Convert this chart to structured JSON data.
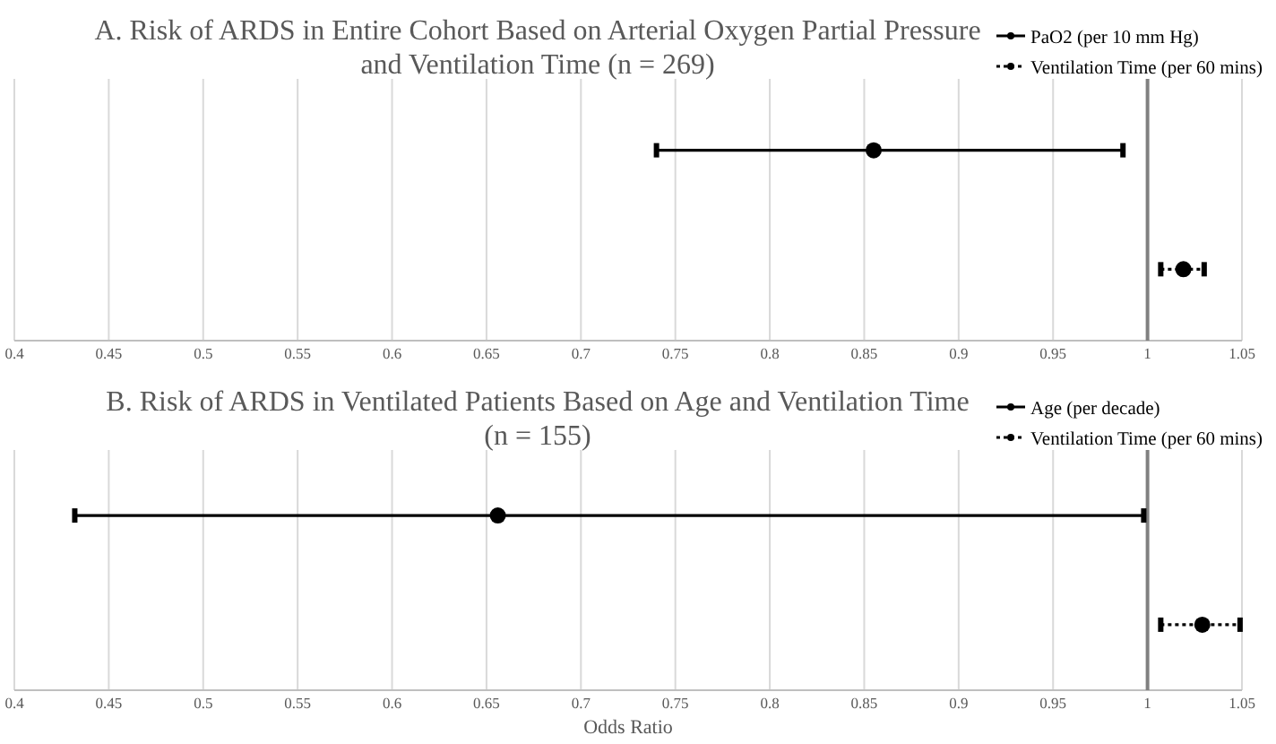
{
  "chart_data": [
    {
      "type": "scatter",
      "title": "A. Risk of ARDS in Entire Cohort Based on Arterial Oxygen Partial Pressure\nand Ventilation Time (n = 269)",
      "orientation": "horizontal",
      "categories": [
        null,
        null
      ],
      "series": [
        {
          "name": "PaO2 (per 10 mm Hg)",
          "color": "#000000",
          "line_style": "solid",
          "values": [
            0.855,
            null
          ],
          "errors": [
            [
              0.74,
              0.987
            ],
            null
          ]
        },
        {
          "name": "Ventilation Time (per 60 mins)",
          "color": "#000000",
          "line_style": "dotted",
          "values": [
            null,
            1.019
          ],
          "errors": [
            null,
            [
              1.007,
              1.03
            ]
          ]
        }
      ],
      "xlim": [
        0.4,
        1.05
      ],
      "xticks": [
        0.4,
        0.45,
        0.5,
        0.55,
        0.6,
        0.65,
        0.7,
        0.75,
        0.8,
        0.85,
        0.9,
        0.95,
        1,
        1.05
      ],
      "grid": "x",
      "legend": "top right",
      "marker": "circle",
      "ref_lines": [
        {
          "axis": "x",
          "value": 1,
          "color": "#808080"
        }
      ]
    },
    {
      "type": "scatter",
      "title": "B. Risk of ARDS in Ventilated Patients Based on Age and Ventilation Time\n(n = 155)",
      "xlabel": "Odds Ratio",
      "orientation": "horizontal",
      "categories": [
        null,
        null
      ],
      "series": [
        {
          "name": "Age (per decade)",
          "color": "#000000",
          "line_style": "solid",
          "values": [
            0.656,
            null
          ],
          "errors": [
            [
              0.432,
              0.998
            ],
            null
          ]
        },
        {
          "name": "Ventilation Time (per 60 mins)",
          "color": "#000000",
          "line_style": "dotted",
          "values": [
            null,
            1.029
          ],
          "errors": [
            null,
            [
              1.007,
              1.049
            ]
          ]
        }
      ],
      "xlim": [
        0.4,
        1.05
      ],
      "xticks": [
        0.4,
        0.45,
        0.5,
        0.55,
        0.6,
        0.65,
        0.7,
        0.75,
        0.8,
        0.85,
        0.9,
        0.95,
        1,
        1.05
      ],
      "grid": "x",
      "legend": "top right",
      "marker": "circle",
      "ref_lines": [
        {
          "axis": "x",
          "value": 1,
          "color": "#808080"
        }
      ]
    }
  ]
}
